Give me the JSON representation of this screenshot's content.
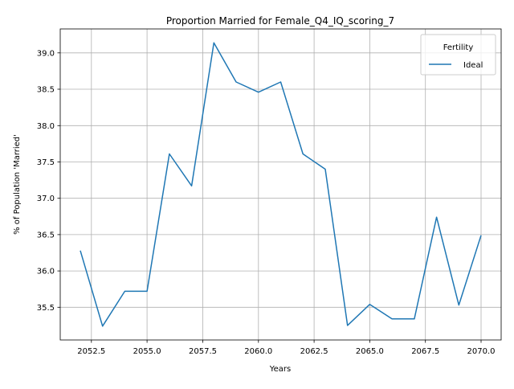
{
  "chart_data": {
    "type": "line",
    "title": "Proportion Married for Female_Q4_IQ_scoring_7",
    "xlabel": "Years",
    "ylabel": "% of Population 'Married'",
    "x": [
      2052,
      2053,
      2054,
      2055,
      2056,
      2057,
      2058,
      2059,
      2060,
      2061,
      2062,
      2063,
      2064,
      2065,
      2066,
      2067,
      2068,
      2069,
      2070
    ],
    "series": [
      {
        "name": "Ideal",
        "color": "#1f77b4",
        "values": [
          36.28,
          35.24,
          35.72,
          35.72,
          37.61,
          37.17,
          39.14,
          38.6,
          38.46,
          38.6,
          37.61,
          37.4,
          35.25,
          35.54,
          35.34,
          35.34,
          36.74,
          35.53,
          36.49
        ]
      }
    ],
    "xlim": [
      2051.1,
      2070.9
    ],
    "ylim": [
      35.05,
      39.33
    ],
    "xticks": [
      2052.5,
      2055,
      2057.5,
      2060,
      2062.5,
      2065,
      2067.5,
      2070
    ],
    "xtick_labels": [
      "2052.5",
      "2055.0",
      "2057.5",
      "2060.0",
      "2062.5",
      "2065.0",
      "2067.5",
      "2070.0"
    ],
    "yticks": [
      35.5,
      36.0,
      36.5,
      37.0,
      37.5,
      38.0,
      38.5,
      39.0
    ],
    "ytick_labels": [
      "35.5",
      "36.0",
      "36.5",
      "37.0",
      "37.5",
      "38.0",
      "38.5",
      "39.0"
    ],
    "grid": true,
    "legend": {
      "title": "Fertility",
      "placement": "top-right"
    }
  }
}
